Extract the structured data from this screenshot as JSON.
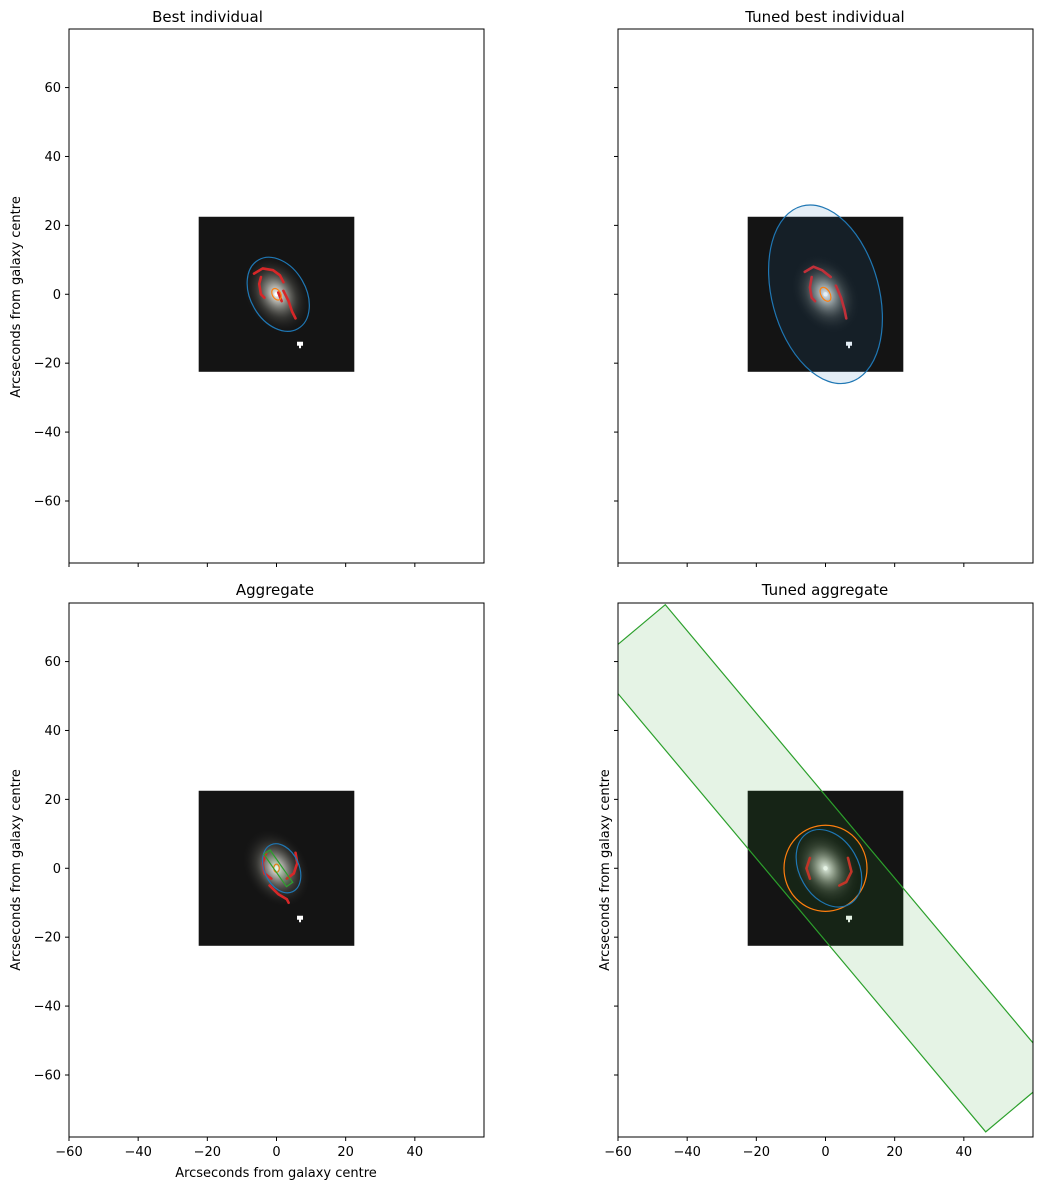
{
  "chart_data": [
    {
      "type": "scatter",
      "title": "Best individual",
      "xlabel": "",
      "ylabel": "Arcseconds from galaxy centre",
      "xlim": [
        -60,
        60
      ],
      "ylim": [
        -78,
        77
      ],
      "xticks": [
        -60,
        -40,
        -20,
        0,
        20,
        40
      ],
      "yticks": [
        60,
        40,
        20,
        0,
        -20,
        -40,
        -60
      ],
      "show_xticklabels": false,
      "show_yticklabels": true,
      "image_extent": [
        -22.5,
        22.5,
        -22.5,
        22.5
      ],
      "shapes": [
        {
          "kind": "ellipse",
          "component": "disk",
          "cx": 0.5,
          "cy": 0,
          "rx": 8.0,
          "ry": 11.5,
          "angle": 30,
          "color": "#1f77b4",
          "fill": false
        },
        {
          "kind": "ellipse",
          "component": "bulge",
          "cx": 0,
          "cy": 0,
          "rx": 1.2,
          "ry": 1.8,
          "angle": 30,
          "color": "#ff7f0e",
          "fill": false
        }
      ],
      "arms": [
        {
          "points": [
            [
              -6.5,
              6
            ],
            [
              -4,
              7.5
            ],
            [
              -1,
              7
            ],
            [
              1,
              5.5
            ],
            [
              2,
              3.5
            ]
          ]
        },
        {
          "points": [
            [
              -4.5,
              5
            ],
            [
              -5,
              3
            ],
            [
              -4.5,
              0
            ],
            [
              -3.5,
              -1
            ]
          ]
        },
        {
          "points": [
            [
              2,
              1
            ],
            [
              3.5,
              -2
            ],
            [
              4.5,
              -5
            ],
            [
              5.5,
              -7
            ]
          ]
        },
        {
          "points": [
            [
              0.5,
              0.5
            ],
            [
              1.5,
              -2
            ]
          ]
        }
      ]
    },
    {
      "type": "scatter",
      "title": "Tuned best individual",
      "xlabel": "",
      "ylabel": "",
      "xlim": [
        -60,
        60
      ],
      "ylim": [
        -78,
        77
      ],
      "xticks": [
        -60,
        -40,
        -20,
        0,
        20,
        40
      ],
      "yticks": [
        60,
        40,
        20,
        0,
        -20,
        -40,
        -60
      ],
      "show_xticklabels": false,
      "show_yticklabels": false,
      "image_extent": [
        -22.5,
        22.5,
        -22.5,
        22.5
      ],
      "shapes": [
        {
          "kind": "ellipse",
          "component": "disk",
          "cx": 0,
          "cy": 0,
          "rx": 15.5,
          "ry": 26.5,
          "angle": 15,
          "color": "#1f77b4",
          "fill": true
        },
        {
          "kind": "ellipse",
          "component": "bulge",
          "cx": 0,
          "cy": 0,
          "rx": 1.3,
          "ry": 2.2,
          "angle": 30,
          "color": "#ff7f0e",
          "fill": false
        }
      ],
      "arms": [
        {
          "points": [
            [
              -6,
              6.5
            ],
            [
              -3.5,
              8
            ],
            [
              -1,
              7
            ],
            [
              1.5,
              5
            ]
          ]
        },
        {
          "points": [
            [
              -4,
              5
            ],
            [
              -4.5,
              2
            ],
            [
              -4,
              -1
            ],
            [
              -3,
              -2
            ]
          ]
        },
        {
          "points": [
            [
              3,
              2.5
            ],
            [
              4.5,
              -1
            ],
            [
              5.5,
              -4.5
            ],
            [
              6,
              -7
            ]
          ]
        }
      ]
    },
    {
      "type": "scatter",
      "title": "Aggregate",
      "xlabel": "Arcseconds from galaxy centre",
      "ylabel": "Arcseconds from galaxy centre",
      "xlim": [
        -60,
        60
      ],
      "ylim": [
        -78,
        77
      ],
      "xticks": [
        -60,
        -40,
        -20,
        0,
        20,
        40
      ],
      "yticks": [
        60,
        40,
        20,
        0,
        -20,
        -40,
        -60
      ],
      "show_xticklabels": true,
      "show_yticklabels": true,
      "image_extent": [
        -22.5,
        22.5,
        -22.5,
        22.5
      ],
      "shapes": [
        {
          "kind": "ellipse",
          "component": "disk",
          "cx": 1.5,
          "cy": 0,
          "rx": 5.0,
          "ry": 7.5,
          "angle": 25,
          "color": "#1f77b4",
          "fill": false
        },
        {
          "kind": "ellipse",
          "component": "bulge",
          "cx": 0,
          "cy": 0,
          "rx": 0.8,
          "ry": 1.2,
          "angle": 0,
          "color": "#ff7f0e",
          "fill": false
        },
        {
          "kind": "bar",
          "component": "bar",
          "cx": 0.5,
          "cy": 0,
          "w": 2.2,
          "h": 11.5,
          "angle": 35,
          "color": "#2ca02c",
          "fill": true
        }
      ],
      "arms": [
        {
          "points": [
            [
              -3,
              4.5
            ],
            [
              -4,
              1.5
            ],
            [
              -3.5,
              -1.5
            ],
            [
              -1.5,
              -3
            ]
          ]
        },
        {
          "points": [
            [
              5.5,
              4.5
            ],
            [
              6,
              1.5
            ],
            [
              5,
              -1.5
            ],
            [
              3,
              -3
            ]
          ]
        },
        {
          "points": [
            [
              -2,
              -5
            ],
            [
              0.5,
              -7.5
            ],
            [
              3,
              -9
            ],
            [
              3.5,
              -10
            ]
          ]
        }
      ]
    },
    {
      "type": "scatter",
      "title": "Tuned aggregate",
      "xlabel": "",
      "ylabel": "Arcseconds from galaxy centre",
      "xlim": [
        -60,
        60
      ],
      "ylim": [
        -78,
        77
      ],
      "xticks": [
        -60,
        -40,
        -20,
        0,
        20,
        40
      ],
      "yticks": [
        60,
        40,
        20,
        0,
        -20,
        -40,
        -60
      ],
      "show_xticklabels": true,
      "show_yticklabels": false,
      "image_extent": [
        -22.5,
        22.5,
        -22.5,
        22.5
      ],
      "shapes": [
        {
          "kind": "bar",
          "component": "bar",
          "cx": 0,
          "cy": 0,
          "w": 27,
          "h": 177,
          "angle": 40,
          "color": "#2ca02c",
          "fill": true
        },
        {
          "kind": "ellipse",
          "component": "bulge",
          "cx": 0,
          "cy": 0,
          "rx": 12,
          "ry": 12.5,
          "angle": 0,
          "color": "#ff7f0e",
          "fill": false
        },
        {
          "kind": "ellipse",
          "component": "disk",
          "cx": 1,
          "cy": 0,
          "rx": 8.5,
          "ry": 12,
          "angle": 30,
          "color": "#1f77b4",
          "fill": false
        }
      ],
      "arms": [
        {
          "points": [
            [
              -4.5,
              3
            ],
            [
              -5.5,
              0
            ],
            [
              -4.5,
              -3
            ]
          ]
        },
        {
          "points": [
            [
              6.5,
              3
            ],
            [
              7.5,
              -1
            ],
            [
              6,
              -4
            ],
            [
              4,
              -5
            ]
          ]
        }
      ]
    }
  ]
}
